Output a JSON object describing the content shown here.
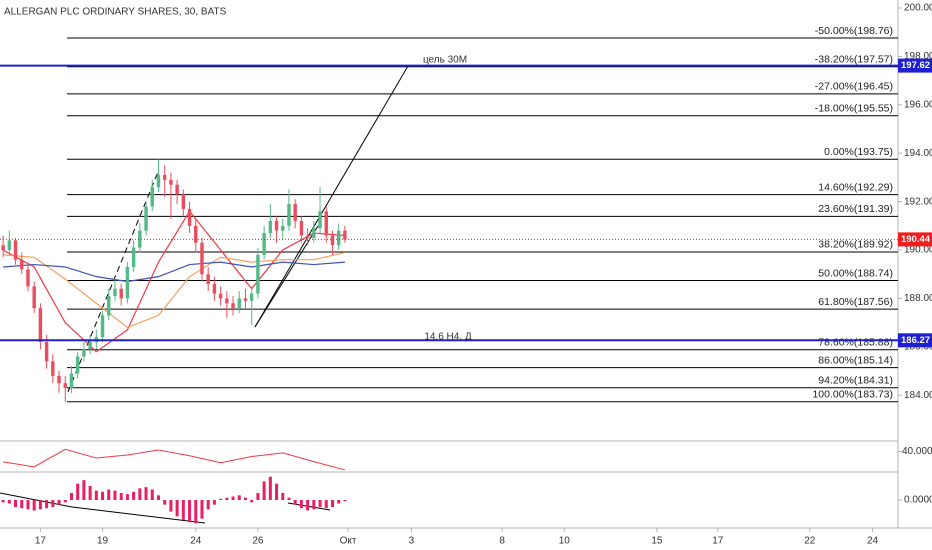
{
  "chart_data": {
    "type": "candlestick",
    "title": "ALLERGAN PLC ORDINARY SHARES, 30, BATS",
    "up_color": "#53b987",
    "down_color": "#eb4d5c",
    "ylim": [
      182.11,
      200.33
    ],
    "xlim": [
      -0.5,
      144
    ],
    "yticks": [
      {
        "value": 184,
        "label": "184.00"
      },
      {
        "value": 186,
        "label": "186.00"
      },
      {
        "value": 188,
        "label": "188.00"
      },
      {
        "value": 190,
        "label": "190.00"
      },
      {
        "value": 192,
        "label": "192.00"
      },
      {
        "value": 194,
        "label": "194.00"
      },
      {
        "value": 196,
        "label": "196.00"
      },
      {
        "value": 198,
        "label": "198.00"
      },
      {
        "value": 200,
        "label": "200.00"
      }
    ],
    "xticks": [
      {
        "value": 6,
        "label": "17"
      },
      {
        "value": 16,
        "label": "19"
      },
      {
        "value": 31,
        "label": "24"
      },
      {
        "value": 41,
        "label": "26"
      },
      {
        "value": 55.5,
        "label": "Окт"
      },
      {
        "value": 65.7,
        "label": "3"
      },
      {
        "value": 80.3,
        "label": "8"
      },
      {
        "value": 90.3,
        "label": "10"
      },
      {
        "value": 105.2,
        "label": "15"
      },
      {
        "value": 115,
        "label": "17"
      },
      {
        "value": 129.8,
        "label": "22"
      },
      {
        "value": 139.9,
        "label": "24"
      }
    ],
    "ohlc": [
      [
        190.2,
        190.6,
        189.7,
        190.0
      ],
      [
        190.0,
        190.8,
        189.8,
        190.4
      ],
      [
        190.4,
        190.5,
        189.4,
        189.6
      ],
      [
        189.6,
        189.9,
        189.0,
        189.2
      ],
      [
        189.2,
        189.4,
        188.3,
        188.5
      ],
      [
        188.5,
        188.7,
        187.4,
        187.6
      ],
      [
        187.6,
        187.8,
        185.9,
        186.2
      ],
      [
        186.2,
        186.5,
        185.1,
        185.4
      ],
      [
        185.4,
        185.7,
        184.5,
        184.8
      ],
      [
        184.8,
        185.0,
        184.1,
        184.5
      ],
      [
        184.5,
        184.8,
        183.73,
        184.3
      ],
      [
        184.3,
        185.2,
        184.1,
        184.9
      ],
      [
        184.9,
        185.8,
        184.7,
        185.6
      ],
      [
        185.6,
        186.2,
        185.4,
        185.9
      ],
      [
        185.9,
        186.5,
        185.7,
        186.2
      ],
      [
        186.2,
        186.7,
        185.9,
        186.4
      ],
      [
        186.4,
        187.5,
        186.2,
        187.3
      ],
      [
        187.3,
        188.4,
        187.1,
        188.1
      ],
      [
        188.1,
        188.8,
        187.9,
        188.4
      ],
      [
        188.4,
        188.6,
        187.7,
        188.0
      ],
      [
        188.0,
        189.5,
        187.8,
        189.3
      ],
      [
        189.3,
        190.4,
        189.1,
        190.1
      ],
      [
        190.1,
        191.1,
        189.9,
        190.8
      ],
      [
        190.8,
        192.0,
        190.6,
        191.8
      ],
      [
        191.8,
        192.9,
        191.6,
        192.6
      ],
      [
        192.6,
        193.75,
        192.4,
        193.1
      ],
      [
        193.1,
        193.5,
        192.2,
        192.9
      ],
      [
        192.9,
        193.2,
        191.3,
        192.7
      ],
      [
        192.7,
        192.9,
        191.9,
        192.3
      ],
      [
        192.3,
        192.5,
        191.4,
        191.7
      ],
      [
        191.7,
        192.0,
        190.7,
        191.0
      ],
      [
        191.0,
        191.3,
        189.9,
        190.3
      ],
      [
        190.3,
        190.5,
        188.7,
        189.0
      ],
      [
        189.0,
        189.3,
        188.3,
        188.6
      ],
      [
        188.6,
        188.9,
        187.9,
        188.2
      ],
      [
        188.2,
        188.5,
        187.7,
        188.0
      ],
      [
        188.0,
        188.3,
        187.2,
        187.8
      ],
      [
        187.8,
        188.1,
        187.3,
        187.6
      ],
      [
        187.6,
        188.3,
        187.4,
        188.0
      ],
      [
        188.0,
        188.4,
        187.6,
        187.9
      ],
      [
        187.9,
        188.5,
        186.9,
        188.2
      ],
      [
        188.2,
        190.1,
        188.0,
        189.8
      ],
      [
        189.8,
        191.0,
        189.6,
        190.7
      ],
      [
        190.7,
        191.9,
        190.5,
        191.2
      ],
      [
        191.2,
        191.4,
        190.3,
        190.8
      ],
      [
        190.8,
        191.3,
        190.4,
        191.0
      ],
      [
        191.0,
        192.5,
        190.8,
        191.9
      ],
      [
        191.9,
        192.1,
        190.9,
        191.2
      ],
      [
        191.2,
        191.4,
        190.3,
        190.6
      ],
      [
        190.6,
        190.9,
        190.2,
        190.5
      ],
      [
        190.5,
        191.2,
        190.3,
        190.9
      ],
      [
        190.9,
        192.6,
        190.7,
        191.6
      ],
      [
        191.6,
        191.8,
        190.3,
        190.6
      ],
      [
        190.6,
        190.8,
        189.8,
        190.2
      ],
      [
        190.2,
        191.1,
        190.0,
        190.8
      ],
      [
        190.8,
        191.0,
        190.3,
        190.44
      ]
    ],
    "series": [
      {
        "color": "#f23645",
        "x": [
          0,
          5,
          10,
          15,
          20,
          25,
          30,
          35,
          40,
          45,
          50,
          55
        ],
        "values": [
          190.0,
          189.3,
          187.0,
          185.8,
          186.7,
          189.5,
          191.6,
          190.0,
          188.4,
          190.0,
          190.7,
          190.6
        ]
      },
      {
        "color": "#f5a05a",
        "x": [
          0,
          5,
          10,
          15,
          20,
          25,
          30,
          35,
          40,
          45,
          50,
          55
        ],
        "values": [
          189.8,
          189.7,
          188.8,
          187.8,
          186.8,
          187.3,
          188.9,
          189.7,
          189.5,
          189.6,
          189.6,
          189.9
        ]
      },
      {
        "color": "#3f51b5",
        "x": [
          0,
          5,
          10,
          15,
          20,
          25,
          30,
          35,
          40,
          45,
          50,
          55
        ],
        "values": [
          189.3,
          189.4,
          189.3,
          188.9,
          188.7,
          188.9,
          189.4,
          189.5,
          189.3,
          189.5,
          189.4,
          189.5
        ]
      }
    ],
    "fib_levels": [
      {
        "label": "-50.00%(198.76)",
        "price": 198.76
      },
      {
        "label": "-38.20%(197.57)",
        "price": 197.57
      },
      {
        "label": "-27.00%(196.45)",
        "price": 196.45
      },
      {
        "label": "-18.00%(195.55)",
        "price": 195.55
      },
      {
        "label": "0.00%(193.75)",
        "price": 193.75
      },
      {
        "label": "14.60%(192.29)",
        "price": 192.29
      },
      {
        "label": "23.60%(191.39)",
        "price": 191.39
      },
      {
        "label": "38.20%(189.92)",
        "price": 189.92
      },
      {
        "label": "50.00%(188.74)",
        "price": 188.74
      },
      {
        "label": "61.80%(187.56)",
        "price": 187.56
      },
      {
        "label": "78.60%(185.88)",
        "price": 185.88
      },
      {
        "label": "86.00%(185.14)",
        "price": 185.14
      },
      {
        "label": "94.20%(184.31)",
        "price": 184.31
      },
      {
        "label": "100.00%(183.73)",
        "price": 183.73
      }
    ],
    "price_lines": [
      {
        "price": 197.62,
        "color": "#1f1fd6",
        "style": "solid"
      },
      {
        "price": 186.27,
        "color": "#1f1fd6",
        "style": "solid"
      },
      {
        "price": 190.44,
        "color": "#f21d1d",
        "style": "dotted"
      }
    ],
    "annotations": [
      "цель 30M",
      "14,6 H4,  Д"
    ],
    "oscillator": {
      "color": "#f23645",
      "ylim": [
        32,
        44
      ],
      "yticks": [
        {
          "value": 40,
          "label": "40.0000"
        }
      ],
      "x": [
        0,
        5,
        10,
        15,
        20,
        25,
        30,
        35,
        40,
        45,
        50,
        55
      ],
      "values": [
        35.9,
        34.0,
        40.8,
        37.4,
        38.6,
        40.5,
        38.3,
        35.6,
        38.0,
        39.4,
        36.0,
        32.8
      ]
    },
    "histogram": {
      "color": "#e91e63",
      "ylim": [
        -1.2,
        1.2
      ],
      "yticks": [
        {
          "value": 0,
          "label": "0.0000"
        }
      ],
      "values": [
        -0.1,
        -0.15,
        -0.3,
        -0.35,
        -0.4,
        -0.45,
        -0.4,
        -0.35,
        -0.3,
        -0.2,
        -0.1,
        0.3,
        0.7,
        0.85,
        0.6,
        0.4,
        0.35,
        0.45,
        0.4,
        0.3,
        0.25,
        0.35,
        0.5,
        0.55,
        0.45,
        0.2,
        -0.2,
        -0.5,
        -0.7,
        -0.85,
        -0.95,
        -1.0,
        -0.8,
        -0.4,
        -0.2,
        0.05,
        0.1,
        0.15,
        0.2,
        0.1,
        -0.1,
        0.3,
        0.8,
        1.0,
        0.7,
        0.3,
        0.1,
        -0.2,
        -0.35,
        -0.45,
        -0.4,
        -0.3,
        -0.35,
        -0.3,
        -0.15,
        -0.05
      ]
    }
  }
}
